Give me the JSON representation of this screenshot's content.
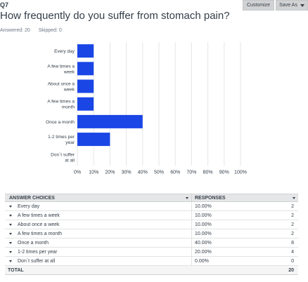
{
  "question": {
    "number": "Q7",
    "title": "How frequently do you suffer from stomach pain?",
    "answered": "Answered: 20",
    "skipped": "Skipped: 0"
  },
  "toolbar": {
    "customize_label": "Customize",
    "save_as_label": "Save As"
  },
  "colors": {
    "bar": "#1a46e6",
    "grid": "#e4e6e8"
  },
  "chart_data": {
    "type": "bar",
    "orientation": "horizontal",
    "categories": [
      [
        "Every day"
      ],
      [
        "A few times a",
        "week"
      ],
      [
        "About once a",
        "week"
      ],
      [
        "A few times a",
        "month"
      ],
      [
        "Once a month"
      ],
      [
        "1-2 times per",
        "year"
      ],
      [
        "Don`t suffer",
        "at all"
      ]
    ],
    "values": [
      10,
      10,
      10,
      10,
      40,
      20,
      0
    ],
    "xlim": [
      0,
      100
    ],
    "ticks": [
      "0%",
      "10%",
      "20%",
      "30%",
      "40%",
      "50%",
      "60%",
      "70%",
      "80%",
      "90%",
      "100%"
    ],
    "grid": true
  },
  "table": {
    "header_choice": "ANSWER CHOICES",
    "header_responses": "RESPONSES",
    "rows": [
      {
        "choice": "Every day",
        "percent": "10.00%",
        "count": "2"
      },
      {
        "choice": "A few times a week",
        "percent": "10.00%",
        "count": "2"
      },
      {
        "choice": "About once a week",
        "percent": "10.00%",
        "count": "2"
      },
      {
        "choice": "A few times a month",
        "percent": "10.00%",
        "count": "2"
      },
      {
        "choice": "Once a month",
        "percent": "40.00%",
        "count": "8"
      },
      {
        "choice": "1-2 times per year",
        "percent": "20.00%",
        "count": "4"
      },
      {
        "choice": "Don`t suffer at all",
        "percent": "0.00%",
        "count": "0"
      }
    ],
    "total_label": "TOTAL",
    "total_count": "20"
  }
}
